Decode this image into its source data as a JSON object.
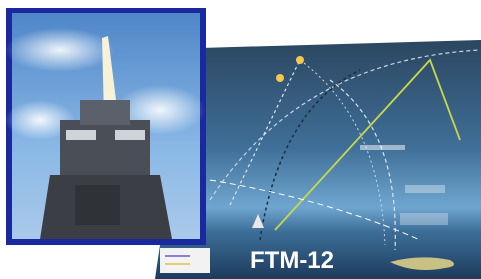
{
  "diagram": {
    "label": "FTM-12"
  }
}
